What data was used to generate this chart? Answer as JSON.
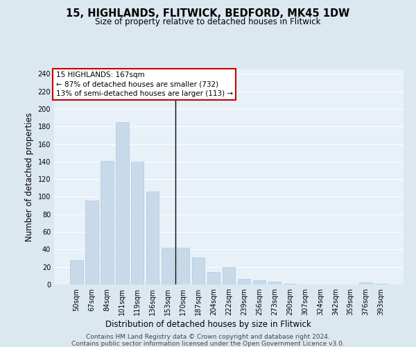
{
  "title": "15, HIGHLANDS, FLITWICK, BEDFORD, MK45 1DW",
  "subtitle": "Size of property relative to detached houses in Flitwick",
  "xlabel": "Distribution of detached houses by size in Flitwick",
  "ylabel": "Number of detached properties",
  "categories": [
    "50sqm",
    "67sqm",
    "84sqm",
    "101sqm",
    "119sqm",
    "136sqm",
    "153sqm",
    "170sqm",
    "187sqm",
    "204sqm",
    "222sqm",
    "239sqm",
    "256sqm",
    "273sqm",
    "290sqm",
    "307sqm",
    "324sqm",
    "342sqm",
    "359sqm",
    "376sqm",
    "393sqm"
  ],
  "values": [
    28,
    96,
    141,
    185,
    140,
    106,
    42,
    42,
    31,
    14,
    20,
    6,
    5,
    3,
    1,
    0,
    0,
    0,
    0,
    2,
    1
  ],
  "bar_color": "#c8daea",
  "bar_edge_color": "#aac8e0",
  "vline_x_index": 7,
  "vline_color": "#000000",
  "annotation_text_line1": "15 HIGHLANDS: 167sqm",
  "annotation_text_line2": "← 87% of detached houses are smaller (732)",
  "annotation_text_line3": "13% of semi-detached houses are larger (113) →",
  "annotation_box_facecolor": "#ffffff",
  "annotation_box_edgecolor": "#cc0000",
  "ylim": [
    0,
    245
  ],
  "yticks": [
    0,
    20,
    40,
    60,
    80,
    100,
    120,
    140,
    160,
    180,
    200,
    220,
    240
  ],
  "footer_line1": "Contains HM Land Registry data © Crown copyright and database right 2024.",
  "footer_line2": "Contains public sector information licensed under the Open Government Licence v3.0.",
  "bg_color": "#dce8f0",
  "plot_bg_color": "#e8f0f8",
  "grid_color": "#ffffff",
  "title_fontsize": 10.5,
  "subtitle_fontsize": 8.5,
  "axis_label_fontsize": 8.5,
  "tick_fontsize": 7,
  "footer_fontsize": 6.5,
  "annotation_fontsize": 7.5
}
